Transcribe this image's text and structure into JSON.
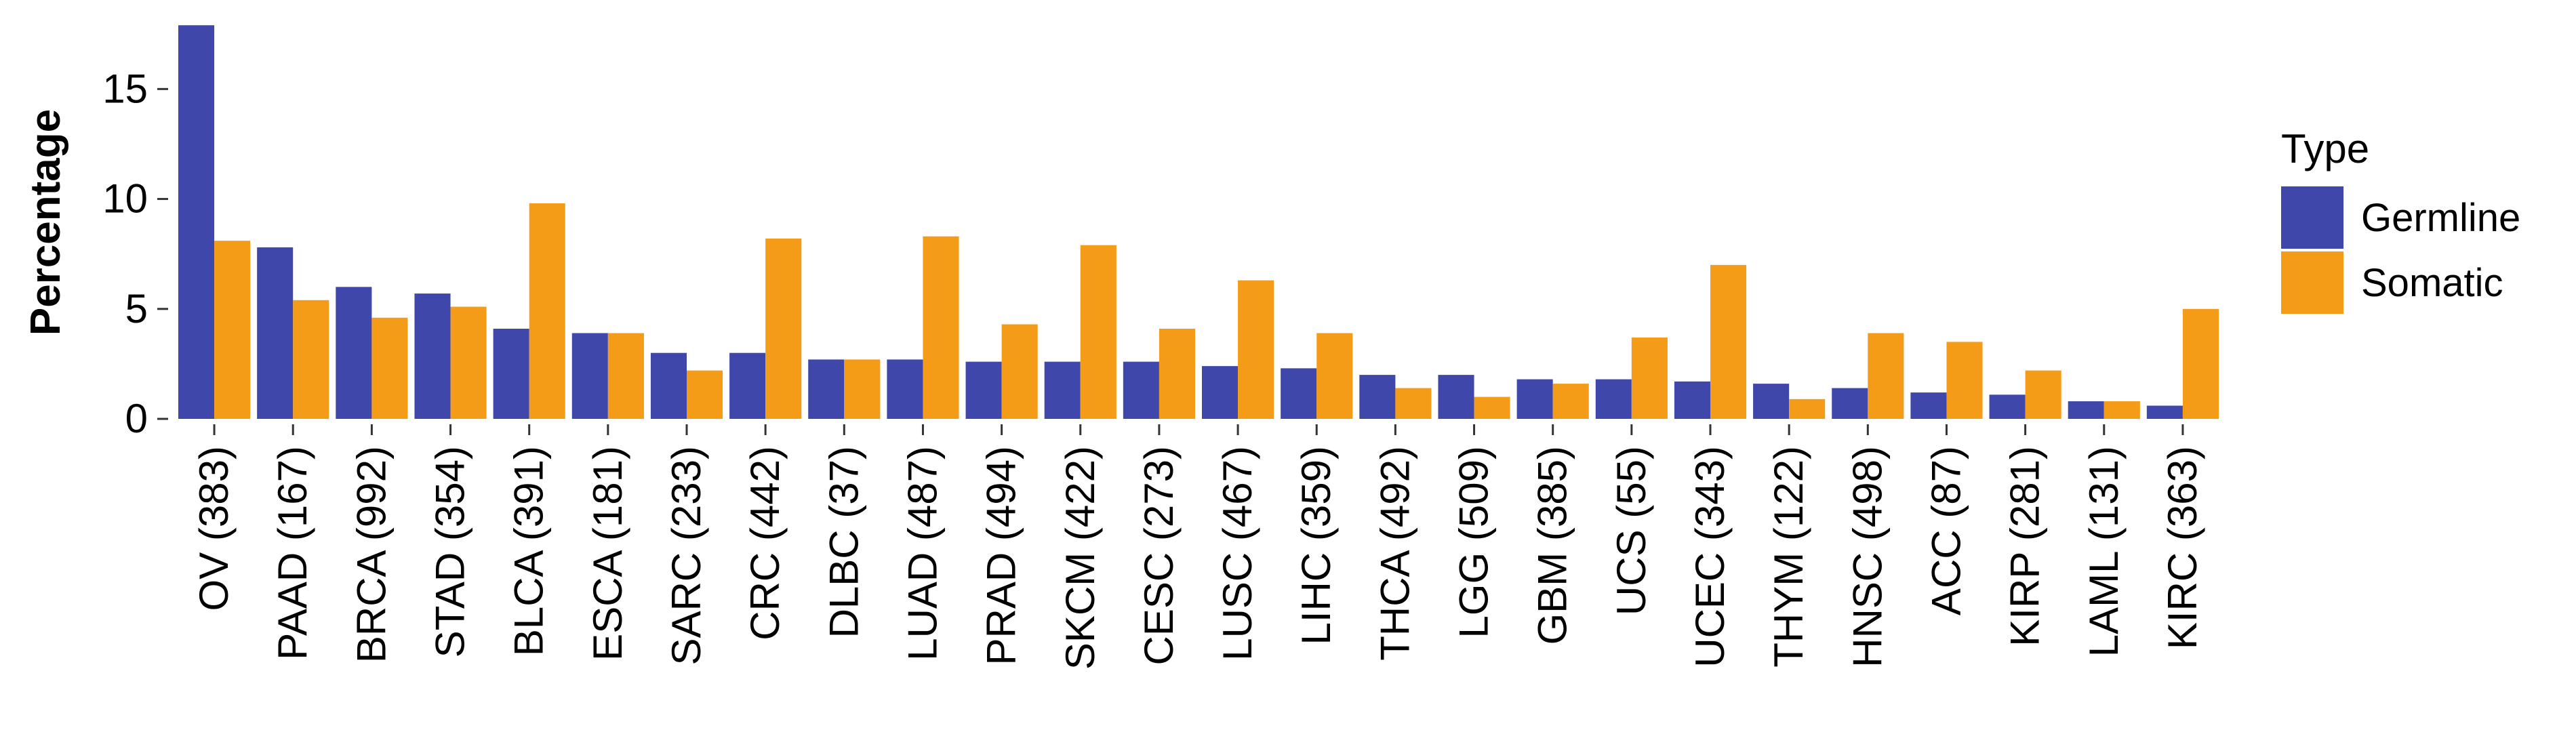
{
  "chart_data": {
    "type": "bar",
    "title": "",
    "xlabel": "",
    "ylabel": "Percentage",
    "ylim": [
      0,
      18
    ],
    "yticks": [
      0,
      5,
      10,
      15
    ],
    "grid": false,
    "legend_position": "right",
    "legend_title": "Type",
    "categories": [
      "OV (383)",
      "PAAD (167)",
      "BRCA (992)",
      "STAD (354)",
      "BLCA (391)",
      "ESCA (181)",
      "SARC (233)",
      "CRC (442)",
      "DLBC (37)",
      "LUAD (487)",
      "PRAD (494)",
      "SKCM (422)",
      "CESC (273)",
      "LUSC (467)",
      "LIHC (359)",
      "THCA (492)",
      "LGG (509)",
      "GBM (385)",
      "UCS (55)",
      "UCEC (343)",
      "THYM (122)",
      "HNSC (498)",
      "ACC (87)",
      "KIRP (281)",
      "LAML (131)",
      "KIRC (363)"
    ],
    "series": [
      {
        "name": "Germline",
        "color": "#3f48aa",
        "values": [
          17.9,
          7.8,
          6.0,
          5.7,
          4.1,
          3.9,
          3.0,
          3.0,
          2.7,
          2.7,
          2.6,
          2.6,
          2.6,
          2.4,
          2.3,
          2.0,
          2.0,
          1.8,
          1.8,
          1.7,
          1.6,
          1.4,
          1.2,
          1.1,
          0.8,
          0.6
        ]
      },
      {
        "name": "Somatic",
        "color": "#f49b17",
        "values": [
          8.1,
          5.4,
          4.6,
          5.1,
          9.8,
          3.9,
          2.2,
          8.2,
          2.7,
          8.3,
          4.3,
          7.9,
          4.1,
          6.3,
          3.9,
          1.4,
          1.0,
          1.6,
          3.7,
          7.0,
          0.9,
          3.9,
          3.5,
          2.2,
          0.8,
          5.0
        ]
      }
    ]
  }
}
